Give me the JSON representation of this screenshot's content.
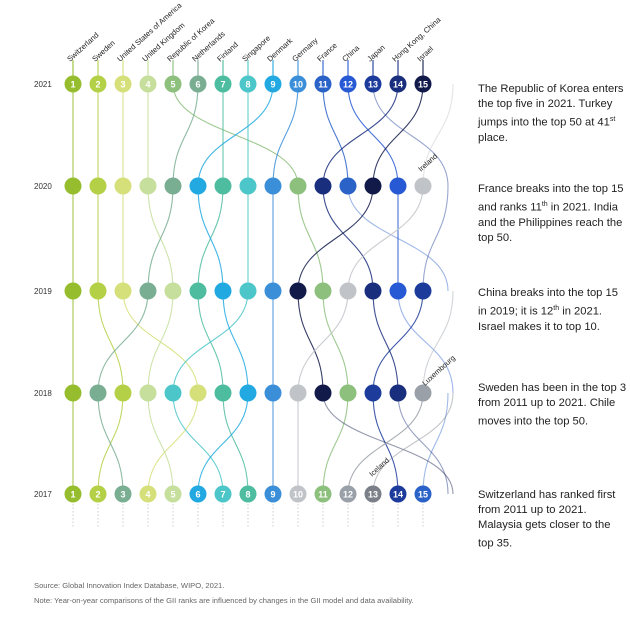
{
  "chart_data": {
    "type": "bump",
    "title": "",
    "years": [
      "2021",
      "2020",
      "2019",
      "2018",
      "2017"
    ],
    "max_rank_shown": 15,
    "series": [
      {
        "name": "Switzerland",
        "color": "#96bd2d",
        "ranks": [
          1,
          1,
          1,
          1,
          1
        ],
        "label_top": true
      },
      {
        "name": "Sweden",
        "color": "#b4d046",
        "ranks": [
          2,
          2,
          2,
          3,
          2
        ],
        "label_top": true
      },
      {
        "name": "United States of America",
        "color": "#d6e07a",
        "ranks": [
          3,
          3,
          3,
          6,
          4
        ],
        "label_top": true
      },
      {
        "name": "United Kingdom",
        "color": "#c6df9c",
        "ranks": [
          4,
          4,
          5,
          4,
          5
        ],
        "label_top": true
      },
      {
        "name": "Republic of Korea",
        "color": "#8cc07c",
        "ranks": [
          5,
          10,
          11,
          12,
          11
        ],
        "label_top": true
      },
      {
        "name": "Netherlands",
        "color": "#7aae93",
        "ranks": [
          6,
          5,
          4,
          2,
          3
        ],
        "label_top": true
      },
      {
        "name": "Finland",
        "color": "#4dbc9f",
        "ranks": [
          7,
          7,
          6,
          7,
          8
        ],
        "label_top": true
      },
      {
        "name": "Singapore",
        "color": "#4cc6c8",
        "ranks": [
          8,
          8,
          8,
          5,
          7
        ],
        "label_top": true
      },
      {
        "name": "Denmark",
        "color": "#22a9e1",
        "ranks": [
          9,
          6,
          7,
          8,
          6
        ],
        "label_top": true
      },
      {
        "name": "Germany",
        "color": "#3b8fd8",
        "ranks": [
          10,
          9,
          9,
          9,
          9
        ],
        "label_top": true
      },
      {
        "name": "France",
        "color": "#2a62c8",
        "ranks": [
          11,
          12,
          16,
          16,
          15
        ],
        "label_top": true
      },
      {
        "name": "China",
        "color": "#2759d4",
        "ranks": [
          12,
          14,
          14,
          17,
          22
        ],
        "label_top": true
      },
      {
        "name": "Japan",
        "color": "#1c3b9a",
        "ranks": [
          13,
          16,
          15,
          13,
          14
        ],
        "label_top": true
      },
      {
        "name": "Hong Kong, China",
        "color": "#1a2e7e",
        "ranks": [
          14,
          11,
          13,
          14,
          16
        ],
        "label_top": true
      },
      {
        "name": "Israel",
        "color": "#121a4a",
        "ranks": [
          15,
          13,
          10,
          11,
          17
        ],
        "label_top": true
      },
      {
        "name": "Ireland",
        "color": "#c0c3c8",
        "ranks": [
          19,
          15,
          12,
          10,
          10
        ],
        "label_top": false
      },
      {
        "name": "Luxembourg",
        "color": "#9aa0a8",
        "ranks": [
          23,
          18,
          18,
          15,
          12
        ],
        "label_top": false
      },
      {
        "name": "Iceland",
        "color": "#7a7f88",
        "ranks": [
          17,
          20,
          20,
          23,
          13
        ],
        "label_top": false
      }
    ],
    "annotations": [
      "Ireland",
      "Luxembourg",
      "Iceland"
    ]
  },
  "notes": [
    {
      "pre": "The Republic of Korea enters the top five in 2021. Turkey jumps into the top 50 at 41",
      "sup": "st",
      "post": " place."
    },
    {
      "pre": "France breaks into the top 15 and ranks 11",
      "sup": "th",
      "post": " in 2021. India and the Philippines reach the top 50."
    },
    {
      "pre": "China breaks into the top 15 in 2019; it is 12",
      "sup": "th",
      "post": " in 2021. Israel makes it to top 10."
    },
    {
      "pre": "Sweden has been in the top 3 from 2011 up to 2021. Chile moves into the top 50.",
      "sup": "",
      "post": ""
    },
    {
      "pre": "Switzerland has ranked first from 2011 up to 2021. Malaysia gets closer to the top 35.",
      "sup": "",
      "post": ""
    }
  ],
  "source": "Source: Global Innovation Index Database, WIPO, 2021.",
  "note": "Note: Year-on-year comparisons of the GII ranks are influenced by changes in the GII model and data availability."
}
